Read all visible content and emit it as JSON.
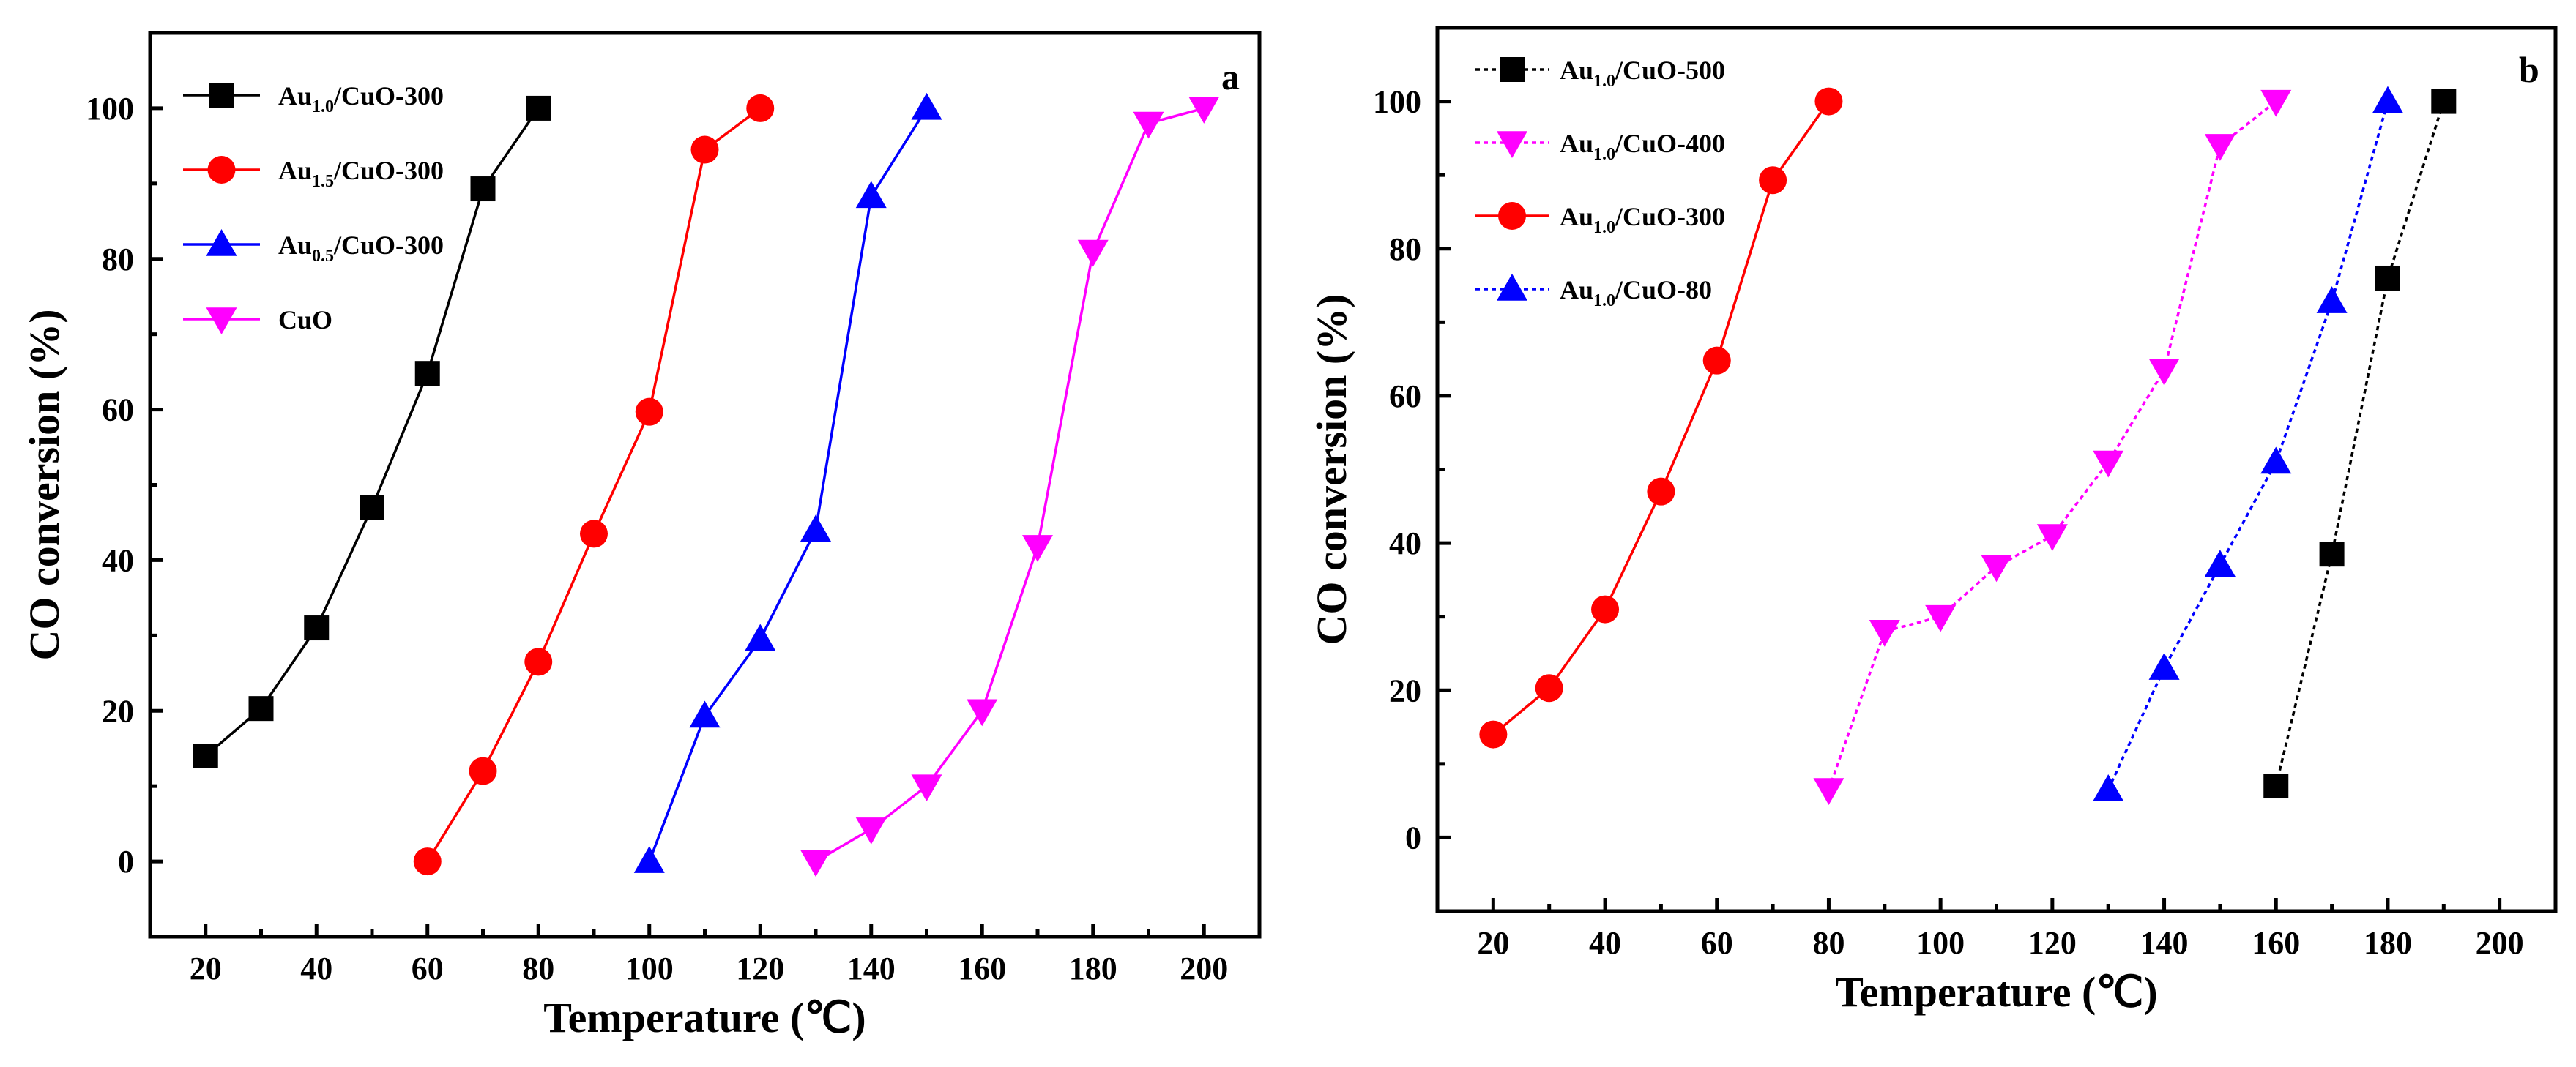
{
  "chart_data": [
    {
      "panel": "a",
      "type": "line",
      "xlabel": "Temperature (℃)",
      "ylabel": "CO conversion (%)",
      "xlim": [
        10,
        210
      ],
      "ylim": [
        -10,
        110
      ],
      "xticks": [
        20,
        40,
        60,
        80,
        100,
        120,
        140,
        160,
        180,
        200
      ],
      "yticks": [
        0,
        20,
        40,
        60,
        80,
        100
      ],
      "legend_position": "top-left",
      "series": [
        {
          "name": "Au1.0/CuO-300",
          "name_main": "Au",
          "name_sub": "1.0",
          "name_rest": "/CuO-300",
          "color": "#000000",
          "marker": "square",
          "dashed": false,
          "x": [
            20,
            30,
            40,
            50,
            60,
            70,
            80
          ],
          "y": [
            14,
            20.3,
            31,
            47,
            64.8,
            89.3,
            100
          ]
        },
        {
          "name": "Au1.5/CuO-300",
          "name_main": "Au",
          "name_sub": "1.5",
          "name_rest": "/CuO-300",
          "color": "#ff0000",
          "marker": "circle",
          "dashed": false,
          "x": [
            60,
            70,
            80,
            90,
            100,
            110,
            120
          ],
          "y": [
            0,
            12,
            26.5,
            43.5,
            59.7,
            94.5,
            100
          ]
        },
        {
          "name": "Au0.5/CuO-300",
          "name_main": "Au",
          "name_sub": "0.5",
          "name_rest": "/CuO-300",
          "color": "#0000ff",
          "marker": "triangle-up",
          "dashed": false,
          "x": [
            100,
            110,
            120,
            130,
            140,
            150
          ],
          "y": [
            0,
            19.3,
            29.5,
            44,
            88.3,
            100
          ]
        },
        {
          "name": "CuO",
          "name_main": "CuO",
          "name_sub": "",
          "name_rest": "",
          "color": "#ff00ff",
          "marker": "triangle-down",
          "dashed": false,
          "x": [
            130,
            140,
            150,
            160,
            170,
            180,
            190,
            200
          ],
          "y": [
            0,
            4.3,
            10,
            20,
            41.8,
            81,
            98,
            100
          ]
        }
      ]
    },
    {
      "panel": "b",
      "type": "line",
      "xlabel": "Temperature (℃)",
      "ylabel": "CO conversion (%)",
      "xlim": [
        10,
        210
      ],
      "ylim": [
        -10,
        110
      ],
      "xticks": [
        20,
        40,
        60,
        80,
        100,
        120,
        140,
        160,
        180,
        200
      ],
      "yticks": [
        0,
        20,
        40,
        60,
        80,
        100
      ],
      "legend_position": "top-left",
      "series": [
        {
          "name": "Au1.0/CuO-500",
          "name_main": "Au",
          "name_sub": "1.0",
          "name_rest": "/CuO-500",
          "color": "#000000",
          "marker": "square",
          "dashed": true,
          "x": [
            160,
            170,
            180,
            190
          ],
          "y": [
            7,
            38.5,
            76,
            100
          ]
        },
        {
          "name": "Au1.0/CuO-400",
          "name_main": "Au",
          "name_sub": "1.0",
          "name_rest": "/CuO-400",
          "color": "#ff00ff",
          "marker": "triangle-down",
          "dashed": true,
          "x": [
            80,
            90,
            100,
            110,
            120,
            130,
            140,
            150,
            160
          ],
          "y": [
            6.5,
            28,
            30,
            36.8,
            41,
            51,
            63.5,
            94,
            100
          ]
        },
        {
          "name": "Au1.0/CuO-300",
          "name_main": "Au",
          "name_sub": "1.0",
          "name_rest": "/CuO-300",
          "color": "#ff0000",
          "marker": "circle",
          "dashed": false,
          "x": [
            20,
            30,
            40,
            50,
            60,
            70,
            80
          ],
          "y": [
            14,
            20.3,
            31,
            47,
            64.8,
            89.3,
            100
          ]
        },
        {
          "name": "Au1.0/CuO-80",
          "name_main": "Au",
          "name_sub": "1.0",
          "name_rest": "/CuO-80",
          "color": "#0000ff",
          "marker": "triangle-up",
          "dashed": true,
          "x": [
            130,
            140,
            150,
            160,
            170,
            180
          ],
          "y": [
            6.5,
            23,
            37,
            51,
            72.8,
            100
          ]
        }
      ]
    }
  ]
}
